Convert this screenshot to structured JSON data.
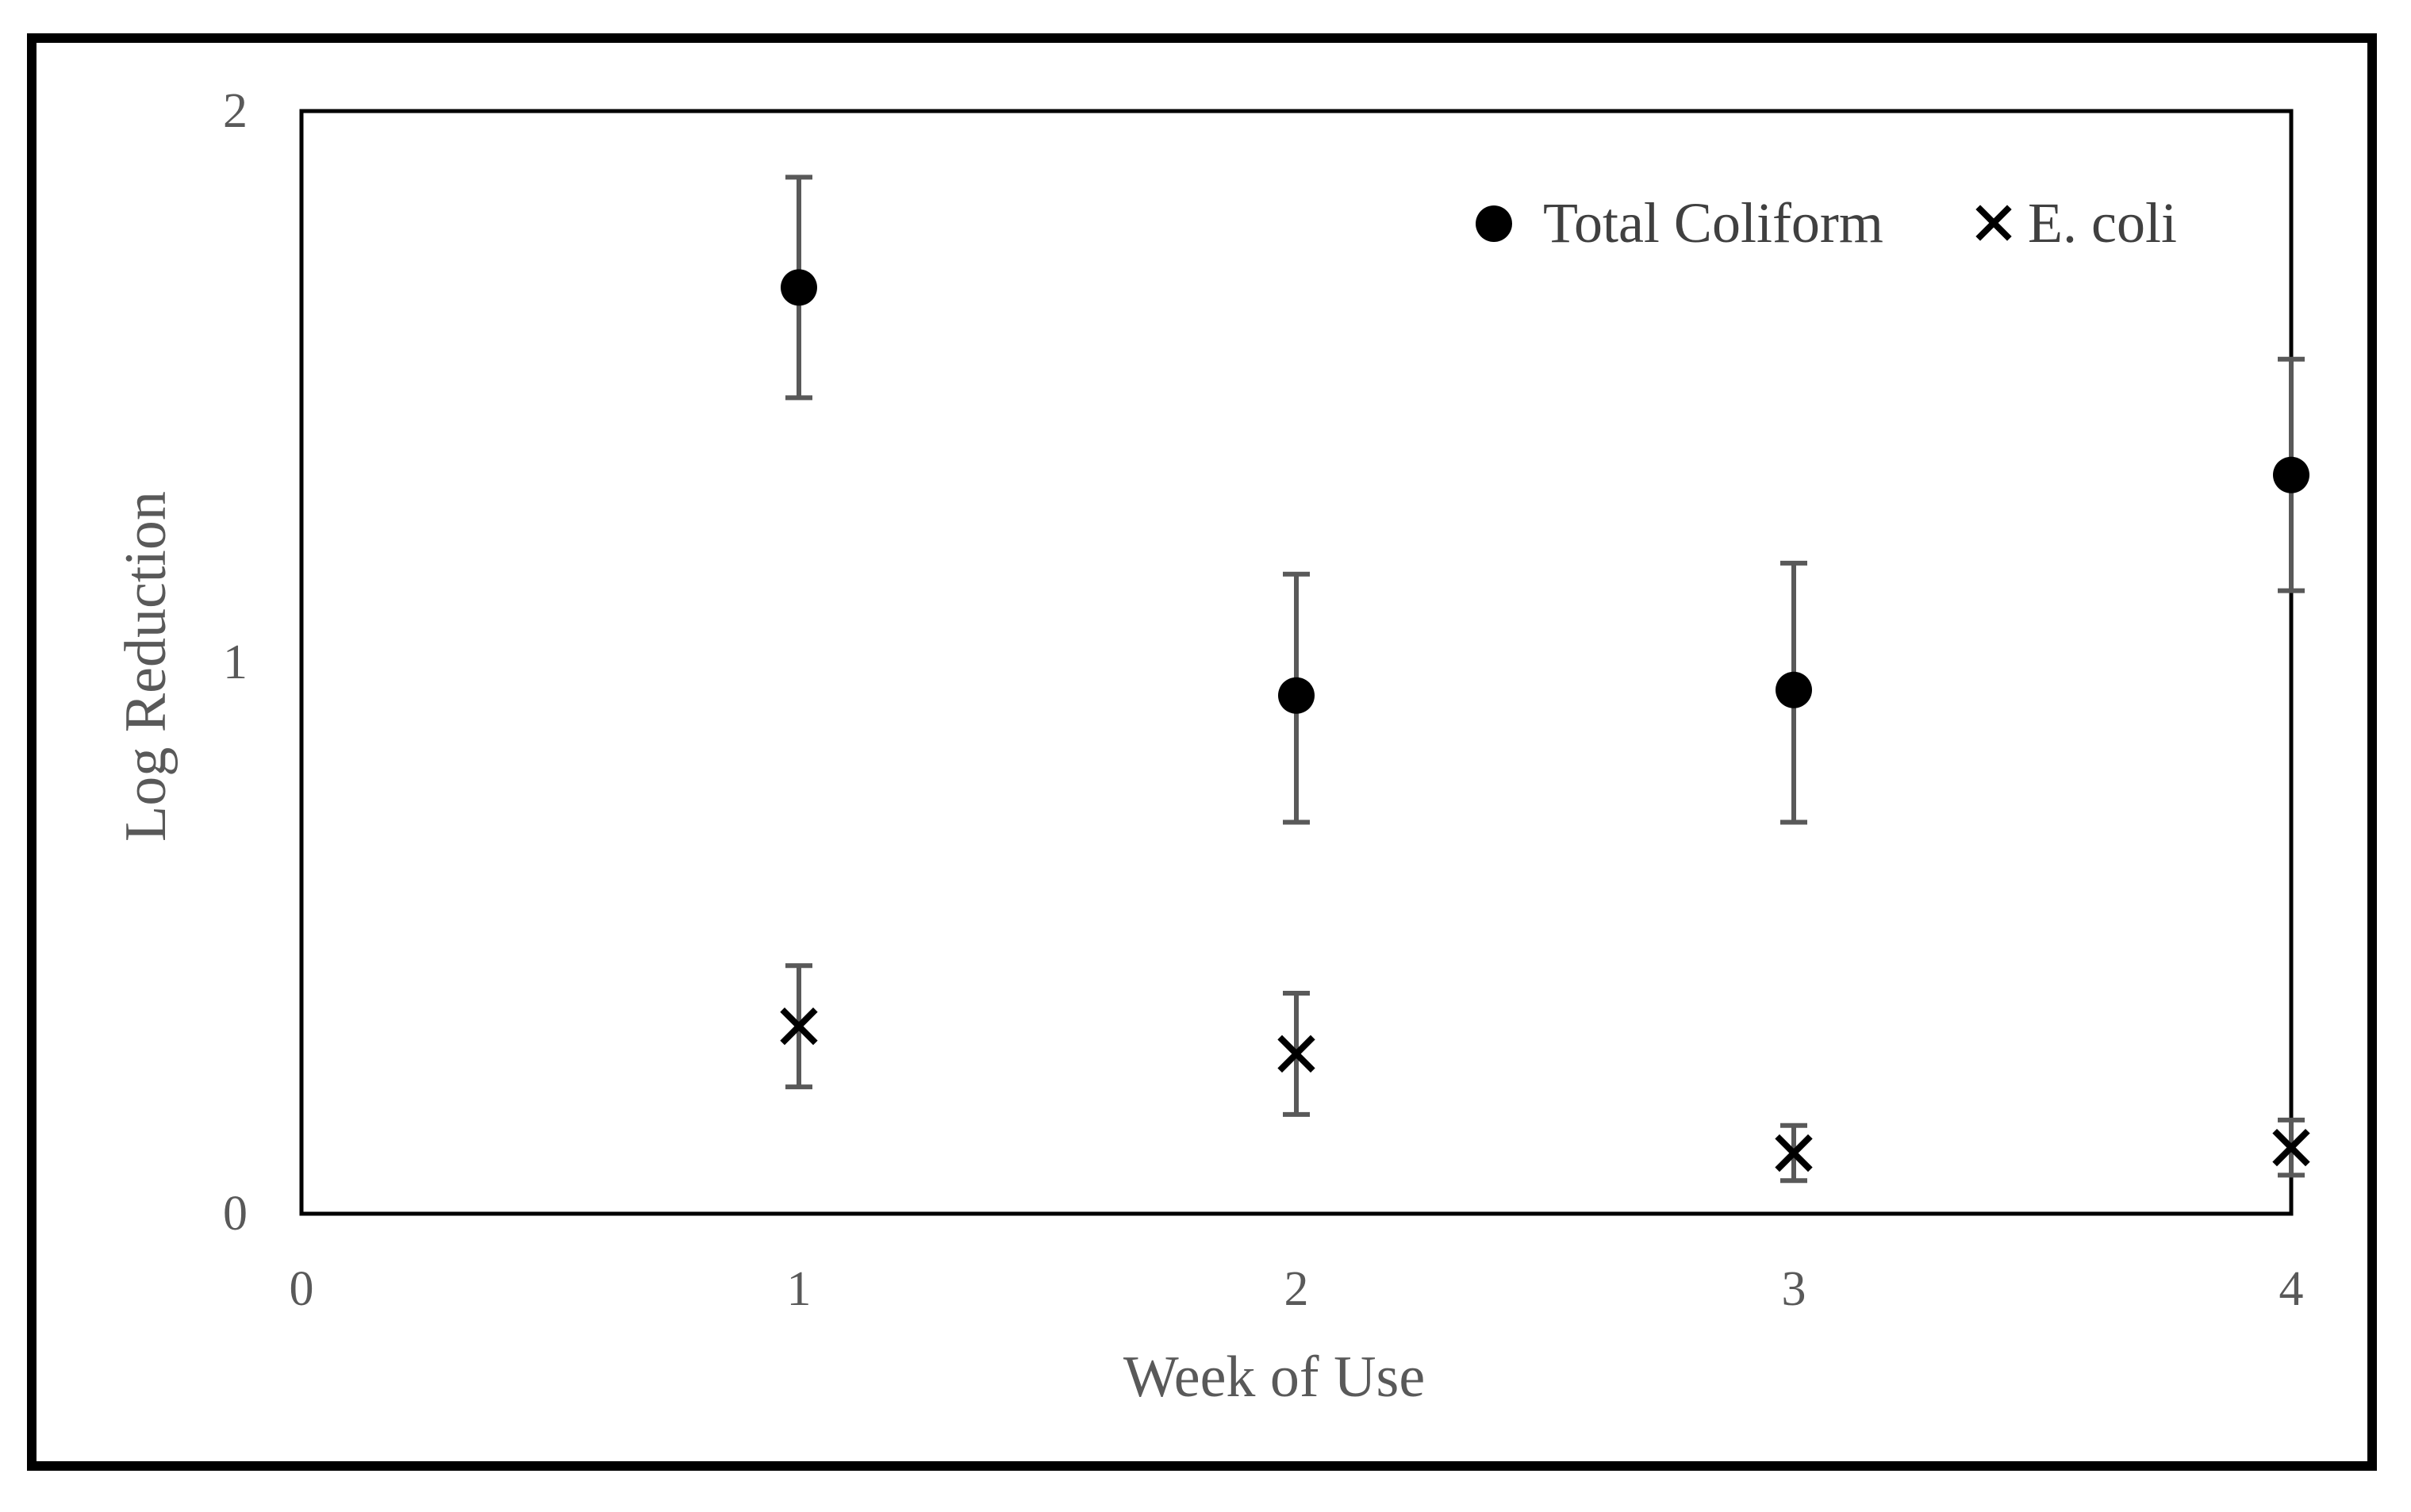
{
  "chart_data": {
    "type": "scatter",
    "xlabel": "Week of Use",
    "ylabel": "Log Reduction",
    "xlim": [
      0,
      4
    ],
    "ylim": [
      0,
      2
    ],
    "xticks": [
      "0",
      "1",
      "2",
      "3",
      "4"
    ],
    "yticks": [
      "0",
      "1",
      "2"
    ],
    "grid": false,
    "legend_position": "top-right",
    "series": [
      {
        "name": "Total Coliform",
        "marker": "circle",
        "color": "#000000",
        "x": [
          1,
          2,
          3,
          4
        ],
        "y": [
          1.68,
          0.94,
          0.95,
          1.34
        ],
        "error_low": [
          1.48,
          0.71,
          0.71,
          1.13
        ],
        "error_high": [
          1.88,
          1.16,
          1.18,
          1.55
        ]
      },
      {
        "name": "E. coli",
        "marker": "x",
        "color": "#000000",
        "x": [
          1,
          2,
          3,
          4
        ],
        "y": [
          0.34,
          0.29,
          0.11,
          0.12
        ],
        "error_low": [
          0.23,
          0.18,
          0.06,
          0.07
        ],
        "error_high": [
          0.45,
          0.4,
          0.16,
          0.17
        ]
      }
    ],
    "error_bar_color": "#595959"
  }
}
